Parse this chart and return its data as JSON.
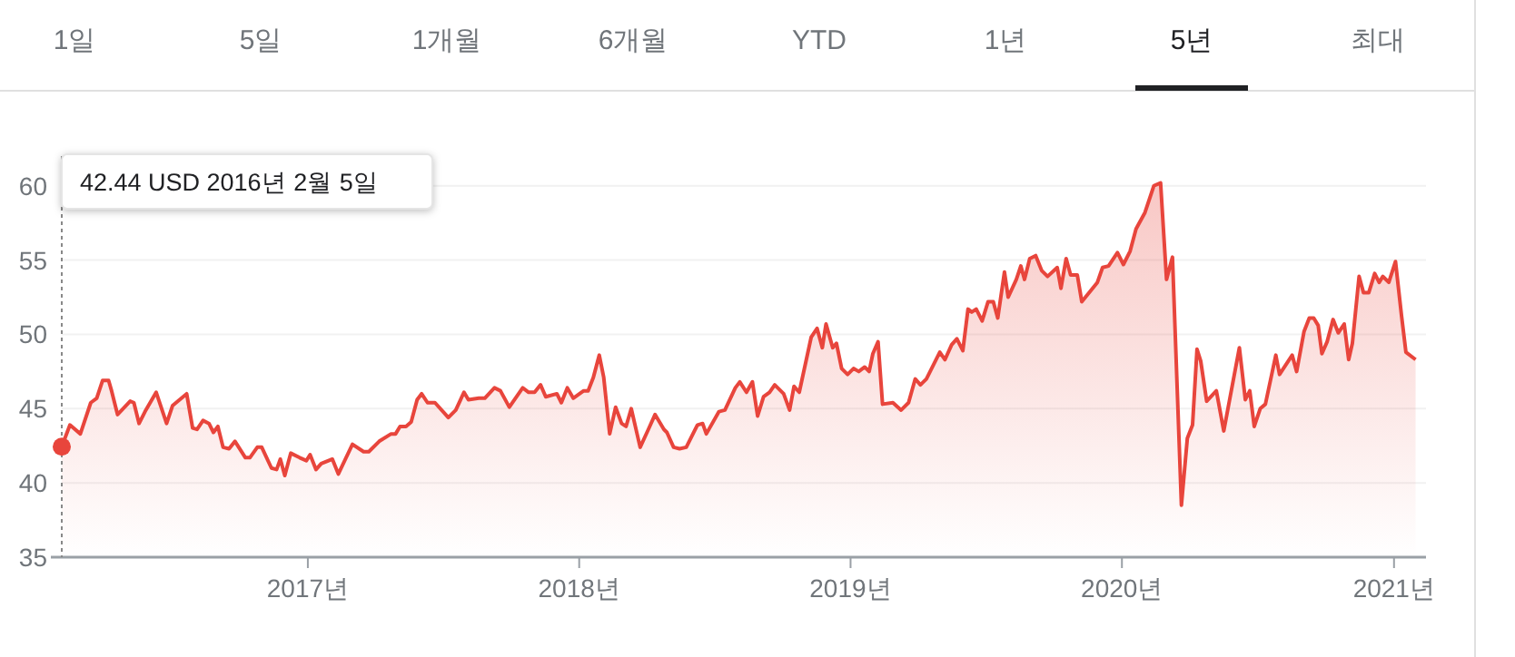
{
  "chart_data": {
    "type": "area",
    "annotations": [
      "42.44 USD  2016년 2월 5일",
      "1일",
      "5일",
      "1개월",
      "6개월",
      "YTD",
      "1년",
      "5년",
      "최대"
    ],
    "x": [
      "2016-02-05",
      "2016-02-16",
      "2016-03-01",
      "2016-03-15",
      "2016-03-23",
      "2016-03-31",
      "2016-04-08",
      "2016-04-12",
      "2016-04-20",
      "2016-05-07",
      "2016-05-12",
      "2016-05-19",
      "2016-05-27",
      "2016-06-11",
      "2016-06-25",
      "2016-07-03",
      "2016-07-22",
      "2016-07-30",
      "2016-08-05",
      "2016-08-13",
      "2016-08-21",
      "2016-08-27",
      "2016-09-02",
      "2016-09-09",
      "2016-09-17",
      "2016-09-25",
      "2016-10-09",
      "2016-10-15",
      "2016-10-25",
      "2016-10-31",
      "2016-11-13",
      "2016-11-20",
      "2016-11-25",
      "2016-12-01",
      "2016-12-09",
      "2016-12-21",
      "2016-12-30",
      "2017-01-04",
      "2017-01-12",
      "2017-01-19",
      "2017-02-03",
      "2017-02-11",
      "2017-03-02",
      "2017-03-17",
      "2017-03-24",
      "2017-04-07",
      "2017-04-23",
      "2017-04-29",
      "2017-05-05",
      "2017-05-13",
      "2017-05-20",
      "2017-05-28",
      "2017-06-03",
      "2017-06-11",
      "2017-06-21",
      "2017-07-09",
      "2017-07-19",
      "2017-07-30",
      "2017-08-05",
      "2017-08-19",
      "2017-08-27",
      "2017-09-09",
      "2017-09-17",
      "2017-09-29",
      "2017-10-17",
      "2017-10-25",
      "2017-11-02",
      "2017-11-10",
      "2017-11-17",
      "2017-12-02",
      "2017-12-08",
      "2017-12-16",
      "2017-12-24",
      "2018-01-07",
      "2018-01-13",
      "2018-01-20",
      "2018-01-28",
      "2018-02-03",
      "2018-02-11",
      "2018-02-19",
      "2018-02-27",
      "2018-03-05",
      "2018-03-12",
      "2018-03-24",
      "2018-04-04",
      "2018-04-13",
      "2018-04-25",
      "2018-04-29",
      "2018-05-08",
      "2018-05-16",
      "2018-05-25",
      "2018-06-09",
      "2018-06-16",
      "2018-06-21",
      "2018-07-08",
      "2018-07-16",
      "2018-07-30",
      "2018-08-05",
      "2018-08-14",
      "2018-08-22",
      "2018-08-29",
      "2018-09-06",
      "2018-09-14",
      "2018-09-21",
      "2018-10-03",
      "2018-10-11",
      "2018-10-17",
      "2018-10-24",
      "2018-11-09",
      "2018-11-17",
      "2018-11-24",
      "2018-11-29",
      "2018-12-08",
      "2018-12-13",
      "2018-12-20",
      "2018-12-28",
      "2019-01-05",
      "2019-01-12",
      "2019-01-20",
      "2019-01-26",
      "2019-01-31",
      "2019-02-07",
      "2019-02-13",
      "2019-02-27",
      "2019-03-10",
      "2019-03-20",
      "2019-03-29",
      "2019-04-05",
      "2019-04-13",
      "2019-05-01",
      "2019-05-08",
      "2019-05-17",
      "2019-05-24",
      "2019-06-01",
      "2019-06-08",
      "2019-06-13",
      "2019-06-19",
      "2019-06-27",
      "2019-07-05",
      "2019-07-12",
      "2019-07-18",
      "2019-07-27",
      "2019-08-01",
      "2019-08-12",
      "2019-08-18",
      "2019-08-23",
      "2019-08-30",
      "2019-09-07",
      "2019-09-15",
      "2019-09-23",
      "2019-10-06",
      "2019-10-11",
      "2019-10-18",
      "2019-10-24",
      "2019-11-02",
      "2019-11-08",
      "2019-11-29",
      "2019-12-06",
      "2019-12-14",
      "2019-12-26",
      "2020-01-03",
      "2020-01-12",
      "2020-01-20",
      "2020-02-01",
      "2020-02-13",
      "2020-02-22",
      "2020-03-01",
      "2020-03-09",
      "2020-03-21",
      "2020-03-29",
      "2020-04-05",
      "2020-04-11",
      "2020-04-16",
      "2020-04-24",
      "2020-05-07",
      "2020-05-17",
      "2020-06-07",
      "2020-06-15",
      "2020-06-21",
      "2020-06-27",
      "2020-07-05",
      "2020-07-12",
      "2020-07-26",
      "2020-07-31",
      "2020-08-17",
      "2020-08-23",
      "2020-09-02",
      "2020-09-09",
      "2020-09-15",
      "2020-09-21",
      "2020-09-26",
      "2020-10-03",
      "2020-10-11",
      "2020-10-18",
      "2020-10-26",
      "2020-11-01",
      "2020-11-06",
      "2020-11-15",
      "2020-11-21",
      "2020-11-28",
      "2020-12-06",
      "2020-12-12",
      "2020-12-17",
      "2020-12-25",
      "2021-01-03",
      "2021-01-11",
      "2021-01-17",
      "2021-01-30"
    ],
    "series": [
      {
        "color": "#e8453c",
        "values": [
          42.44,
          43.9,
          43.3,
          45.4,
          45.7,
          46.9,
          46.9,
          46.2,
          44.6,
          45.5,
          45.4,
          44.0,
          44.8,
          46.1,
          44.0,
          45.2,
          46.0,
          43.7,
          43.6,
          44.2,
          44.0,
          43.4,
          43.8,
          42.4,
          42.3,
          42.8,
          41.7,
          41.7,
          42.4,
          42.4,
          41.0,
          40.9,
          41.6,
          40.5,
          42.0,
          41.7,
          41.5,
          41.9,
          40.9,
          41.3,
          41.6,
          40.6,
          42.6,
          42.1,
          42.1,
          42.8,
          43.3,
          43.3,
          43.8,
          43.8,
          44.1,
          45.6,
          46.0,
          45.4,
          45.4,
          44.4,
          44.9,
          46.1,
          45.6,
          45.7,
          45.7,
          46.4,
          46.2,
          45.1,
          46.4,
          46.1,
          46.1,
          46.6,
          45.8,
          46.0,
          45.4,
          46.4,
          45.7,
          46.2,
          46.2,
          47.1,
          48.6,
          47.1,
          43.3,
          45.1,
          44.0,
          43.8,
          45.0,
          42.4,
          43.6,
          44.6,
          43.6,
          43.4,
          42.4,
          42.3,
          42.4,
          43.9,
          44.0,
          43.3,
          44.8,
          44.9,
          46.4,
          46.8,
          46.1,
          46.8,
          44.5,
          45.8,
          46.1,
          46.6,
          46.0,
          44.9,
          46.5,
          46.1,
          49.8,
          50.4,
          49.1,
          50.7,
          49.1,
          49.4,
          47.7,
          47.3,
          47.7,
          47.5,
          47.8,
          47.5,
          48.7,
          49.5,
          45.3,
          45.4,
          44.9,
          45.4,
          47.0,
          46.6,
          47.0,
          48.8,
          48.3,
          49.3,
          49.7,
          48.9,
          51.7,
          51.5,
          51.7,
          50.9,
          52.2,
          52.2,
          51.1,
          54.2,
          52.5,
          53.7,
          54.6,
          53.7,
          55.1,
          55.3,
          54.3,
          53.9,
          54.5,
          53.1,
          55.1,
          54.0,
          54.0,
          52.2,
          53.5,
          54.5,
          54.6,
          55.5,
          54.7,
          55.6,
          57.1,
          58.2,
          60.0,
          60.2,
          53.7,
          55.2,
          38.5,
          43.0,
          43.9,
          49.0,
          48.2,
          45.5,
          46.2,
          43.5,
          49.1,
          45.6,
          46.2,
          43.8,
          45.0,
          45.3,
          48.6,
          47.3,
          48.6,
          47.5,
          50.2,
          51.1,
          51.1,
          50.6,
          48.7,
          49.5,
          51.0,
          50.1,
          50.7,
          48.3,
          49.4,
          53.9,
          52.8,
          52.8,
          54.1,
          53.5,
          53.9,
          53.5,
          54.9,
          51.3,
          48.8,
          48.3
        ]
      }
    ],
    "xlim": [
      "2016-02-05",
      "2021-02-13"
    ],
    "xticks": [
      {
        "value": "2017-01-01",
        "label": "2017년"
      },
      {
        "value": "2018-01-01",
        "label": "2018년"
      },
      {
        "value": "2019-01-01",
        "label": "2019년"
      },
      {
        "value": "2020-01-01",
        "label": "2020년"
      },
      {
        "value": "2021-01-01",
        "label": "2021년"
      }
    ],
    "ylim": [
      35,
      62
    ],
    "yticks": [
      35,
      40,
      45,
      50,
      55,
      60
    ],
    "grid": "y",
    "marker": "none",
    "line_style": "solid"
  }
}
